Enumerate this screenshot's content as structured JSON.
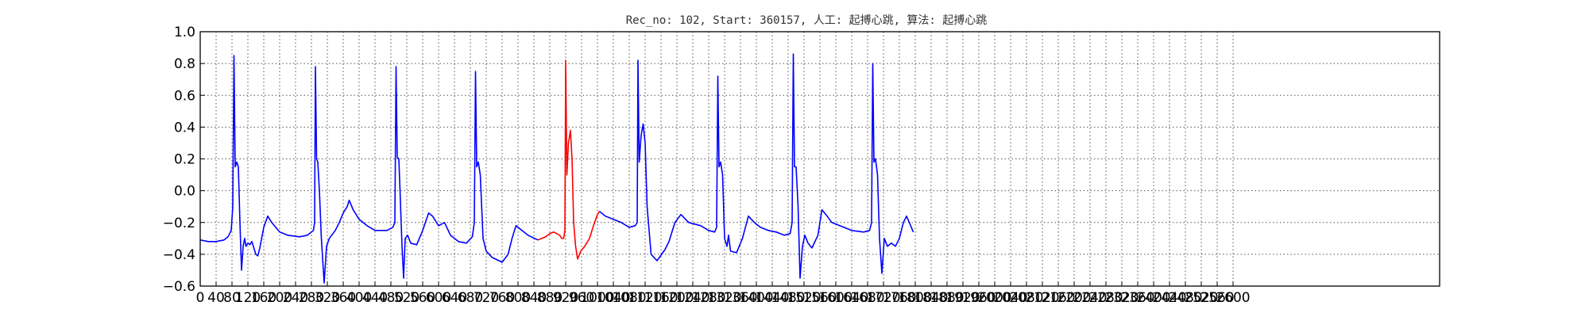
{
  "chart_data": {
    "type": "line",
    "title": "Rec_no: 102, Start: 360157, 人工: 起搏心跳, 算法: 起搏心跳",
    "xlabel": "",
    "ylabel": "",
    "xlim": [
      0,
      3200
    ],
    "ylim": [
      -0.6,
      1.0
    ],
    "grid": true,
    "x_tick_labels": [
      "0",
      "40",
      "80",
      "120",
      "160",
      "200",
      "240",
      "280",
      "320",
      "360",
      "400",
      "440",
      "480",
      "520",
      "560",
      "600",
      "640",
      "680",
      "720",
      "760",
      "800",
      "840",
      "880",
      "920",
      "960",
      "1000",
      "1040",
      "1080",
      "1120",
      "1160",
      "1200",
      "1240",
      "1280",
      "1320",
      "1360",
      "1400",
      "1440",
      "1480",
      "1520",
      "1560",
      "1600",
      "1640",
      "1680",
      "1720",
      "1760",
      "1800",
      "1840",
      "1880",
      "1920",
      "1960",
      "2000",
      "2040",
      "2080",
      "2120",
      "2160",
      "2200",
      "2240",
      "2280",
      "2320",
      "2360",
      "2400",
      "2440",
      "2480",
      "2520",
      "2560",
      "2600"
    ],
    "y_ticks": [
      -0.6,
      -0.4,
      -0.2,
      0.0,
      0.2,
      0.4,
      0.6,
      0.8,
      1.0
    ],
    "y_tick_labels": [
      "−0.6",
      "−0.4",
      "−0.2",
      "0.0",
      "0.2",
      "0.4",
      "0.6",
      "0.8",
      "1.0"
    ],
    "series": [
      {
        "color": "#0000ff",
        "points": [
          [
            0,
            -0.31
          ],
          [
            20,
            -0.32
          ],
          [
            40,
            -0.32
          ],
          [
            60,
            -0.31
          ],
          [
            70,
            -0.29
          ],
          [
            78,
            -0.25
          ],
          [
            82,
            -0.1
          ],
          [
            85,
            0.85
          ],
          [
            88,
            0.15
          ],
          [
            92,
            0.18
          ],
          [
            96,
            0.15
          ],
          [
            100,
            -0.2
          ],
          [
            104,
            -0.5
          ],
          [
            108,
            -0.35
          ],
          [
            112,
            -0.3
          ],
          [
            115,
            -0.35
          ],
          [
            120,
            -0.33
          ],
          [
            125,
            -0.34
          ],
          [
            130,
            -0.32
          ],
          [
            140,
            -0.4
          ],
          [
            145,
            -0.41
          ],
          [
            150,
            -0.36
          ],
          [
            160,
            -0.23
          ],
          [
            170,
            -0.16
          ],
          [
            180,
            -0.2
          ],
          [
            200,
            -0.26
          ],
          [
            220,
            -0.28
          ],
          [
            250,
            -0.29
          ],
          [
            270,
            -0.28
          ],
          [
            285,
            -0.25
          ],
          [
            288,
            -0.2
          ],
          [
            290,
            0.78
          ],
          [
            293,
            0.2
          ],
          [
            296,
            0.18
          ],
          [
            300,
            0.0
          ],
          [
            305,
            -0.3
          ],
          [
            312,
            -0.58
          ],
          [
            318,
            -0.35
          ],
          [
            325,
            -0.3
          ],
          [
            340,
            -0.25
          ],
          [
            350,
            -0.2
          ],
          [
            360,
            -0.14
          ],
          [
            370,
            -0.1
          ],
          [
            375,
            -0.06
          ],
          [
            385,
            -0.12
          ],
          [
            400,
            -0.18
          ],
          [
            420,
            -0.22
          ],
          [
            440,
            -0.25
          ],
          [
            470,
            -0.25
          ],
          [
            485,
            -0.23
          ],
          [
            490,
            -0.2
          ],
          [
            493,
            0.78
          ],
          [
            496,
            0.21
          ],
          [
            500,
            0.2
          ],
          [
            503,
            0.0
          ],
          [
            508,
            -0.35
          ],
          [
            512,
            -0.55
          ],
          [
            516,
            -0.3
          ],
          [
            522,
            -0.28
          ],
          [
            530,
            -0.33
          ],
          [
            545,
            -0.34
          ],
          [
            560,
            -0.25
          ],
          [
            575,
            -0.14
          ],
          [
            585,
            -0.16
          ],
          [
            600,
            -0.22
          ],
          [
            615,
            -0.2
          ],
          [
            630,
            -0.28
          ],
          [
            650,
            -0.32
          ],
          [
            670,
            -0.33
          ],
          [
            685,
            -0.29
          ],
          [
            690,
            -0.2
          ],
          [
            693,
            0.75
          ],
          [
            696,
            0.15
          ],
          [
            700,
            0.18
          ],
          [
            705,
            0.1
          ],
          [
            712,
            -0.3
          ],
          [
            720,
            -0.38
          ],
          [
            735,
            -0.42
          ],
          [
            760,
            -0.45
          ],
          [
            775,
            -0.4
          ],
          [
            785,
            -0.3
          ],
          [
            795,
            -0.22
          ],
          [
            810,
            -0.25
          ],
          [
            825,
            -0.28
          ],
          [
            850,
            -0.31
          ]
        ]
      },
      {
        "color": "#ff0000",
        "points": [
          [
            850,
            -0.31
          ],
          [
            870,
            -0.29
          ],
          [
            880,
            -0.27
          ],
          [
            890,
            -0.26
          ],
          [
            905,
            -0.28
          ],
          [
            910,
            -0.3
          ],
          [
            915,
            -0.3
          ],
          [
            918,
            -0.25
          ],
          [
            920,
            0.82
          ],
          [
            923,
            0.1
          ],
          [
            927,
            0.3
          ],
          [
            932,
            0.38
          ],
          [
            936,
            0.2
          ],
          [
            940,
            -0.2
          ],
          [
            945,
            -0.35
          ],
          [
            950,
            -0.43
          ],
          [
            958,
            -0.38
          ],
          [
            968,
            -0.35
          ],
          [
            980,
            -0.3
          ],
          [
            990,
            -0.22
          ],
          [
            1000,
            -0.15
          ],
          [
            1005,
            -0.13
          ]
        ]
      },
      {
        "color": "#0000ff",
        "points": [
          [
            1005,
            -0.13
          ],
          [
            1020,
            -0.16
          ],
          [
            1040,
            -0.18
          ],
          [
            1060,
            -0.2
          ],
          [
            1080,
            -0.23
          ],
          [
            1095,
            -0.22
          ],
          [
            1100,
            -0.2
          ],
          [
            1102,
            0.82
          ],
          [
            1105,
            0.18
          ],
          [
            1110,
            0.35
          ],
          [
            1115,
            0.42
          ],
          [
            1120,
            0.3
          ],
          [
            1125,
            -0.1
          ],
          [
            1135,
            -0.4
          ],
          [
            1150,
            -0.44
          ],
          [
            1170,
            -0.37
          ],
          [
            1180,
            -0.32
          ],
          [
            1195,
            -0.2
          ],
          [
            1210,
            -0.15
          ],
          [
            1230,
            -0.2
          ],
          [
            1260,
            -0.22
          ],
          [
            1280,
            -0.25
          ],
          [
            1295,
            -0.26
          ],
          [
            1300,
            -0.23
          ],
          [
            1303,
            0.72
          ],
          [
            1306,
            0.15
          ],
          [
            1310,
            0.18
          ],
          [
            1315,
            0.1
          ],
          [
            1320,
            -0.3
          ],
          [
            1326,
            -0.35
          ],
          [
            1330,
            -0.28
          ],
          [
            1335,
            -0.38
          ],
          [
            1350,
            -0.39
          ],
          [
            1365,
            -0.3
          ],
          [
            1380,
            -0.16
          ],
          [
            1395,
            -0.2
          ],
          [
            1410,
            -0.23
          ],
          [
            1430,
            -0.25
          ],
          [
            1450,
            -0.26
          ],
          [
            1470,
            -0.28
          ],
          [
            1485,
            -0.27
          ],
          [
            1490,
            -0.2
          ],
          [
            1493,
            0.86
          ],
          [
            1496,
            0.15
          ],
          [
            1500,
            0.15
          ],
          [
            1505,
            -0.1
          ],
          [
            1510,
            -0.55
          ],
          [
            1516,
            -0.35
          ],
          [
            1522,
            -0.28
          ],
          [
            1530,
            -0.33
          ],
          [
            1540,
            -0.36
          ],
          [
            1555,
            -0.28
          ],
          [
            1565,
            -0.12
          ],
          [
            1575,
            -0.15
          ],
          [
            1590,
            -0.2
          ],
          [
            1610,
            -0.22
          ],
          [
            1640,
            -0.25
          ],
          [
            1670,
            -0.26
          ],
          [
            1685,
            -0.25
          ],
          [
            1690,
            -0.2
          ],
          [
            1693,
            0.8
          ],
          [
            1696,
            0.18
          ],
          [
            1700,
            0.2
          ],
          [
            1705,
            0.1
          ],
          [
            1710,
            -0.3
          ],
          [
            1716,
            -0.52
          ],
          [
            1722,
            -0.3
          ],
          [
            1730,
            -0.35
          ],
          [
            1740,
            -0.33
          ],
          [
            1750,
            -0.35
          ],
          [
            1760,
            -0.3
          ],
          [
            1770,
            -0.2
          ],
          [
            1778,
            -0.16
          ],
          [
            1785,
            -0.2
          ],
          [
            1790,
            -0.23
          ],
          [
            1795,
            -0.26
          ]
        ]
      }
    ]
  }
}
